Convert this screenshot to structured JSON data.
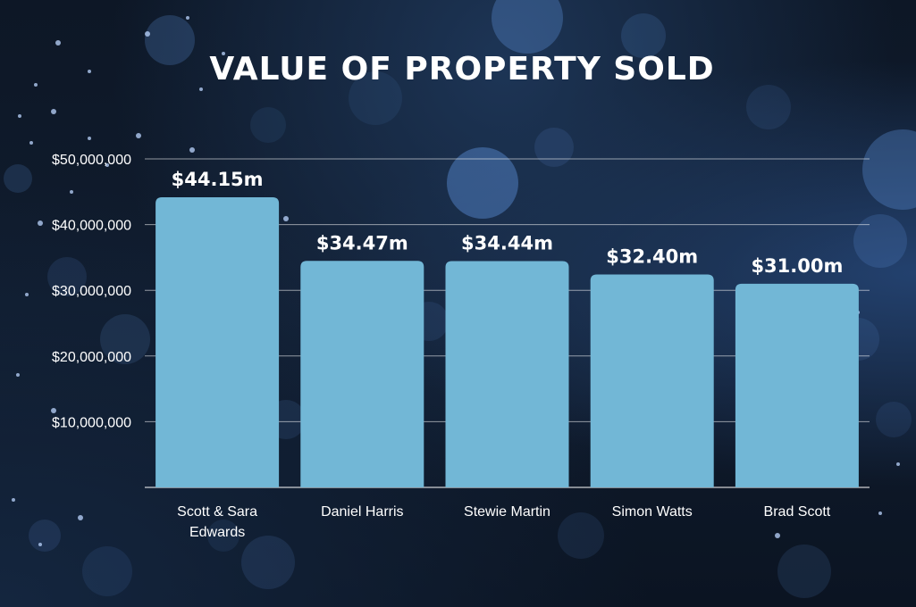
{
  "chart_data": {
    "type": "bar",
    "title": "VALUE OF PROPERTY SOLD",
    "categories": [
      [
        "Scott & Sara",
        "Edwards"
      ],
      [
        "Daniel Harris"
      ],
      [
        "Stewie Martin"
      ],
      [
        "Simon Watts"
      ],
      [
        "Brad Scott"
      ]
    ],
    "values": [
      44150000,
      34470000,
      34440000,
      32400000,
      31000000
    ],
    "data_labels": [
      "$44.15m",
      "$34.47m",
      "$34.44m",
      "$32.40m",
      "$31.00m"
    ],
    "yticks": [
      10000000,
      20000000,
      30000000,
      40000000,
      50000000
    ],
    "ytick_labels": [
      "$10,000,000",
      "$20,000,000",
      "$30,000,000",
      "$40,000,000",
      "$50,000,000"
    ],
    "ylim": [
      0,
      50000000
    ],
    "grid": true,
    "bar_color": "#72b7d6"
  }
}
